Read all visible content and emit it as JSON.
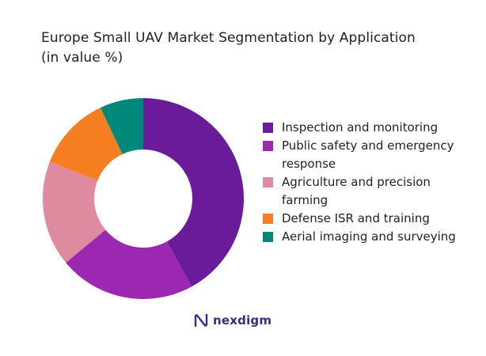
{
  "chart_data": {
    "type": "pie",
    "title_lines": [
      "Europe Small UAV Market Segmentation by Application",
      "(in value %)"
    ],
    "series": [
      {
        "name": "Inspection and monitoring",
        "value": 42,
        "color": "#6a1b9a"
      },
      {
        "name": "Public safety and emergency response",
        "value": 22,
        "color": "#9c27b0"
      },
      {
        "name": "Agriculture and precision farming",
        "value": 17,
        "color": "#e08aa0"
      },
      {
        "name": "Defense ISR and training",
        "value": 12,
        "color": "#f57f20"
      },
      {
        "name": "Aerial imaging and surveying",
        "value": 7,
        "color": "#00897b"
      }
    ],
    "legend_position": "right",
    "donut": true
  },
  "brand": {
    "name": "nexdigm",
    "color": "#3b2a86",
    "icon": "nexdigm-logo-icon"
  }
}
